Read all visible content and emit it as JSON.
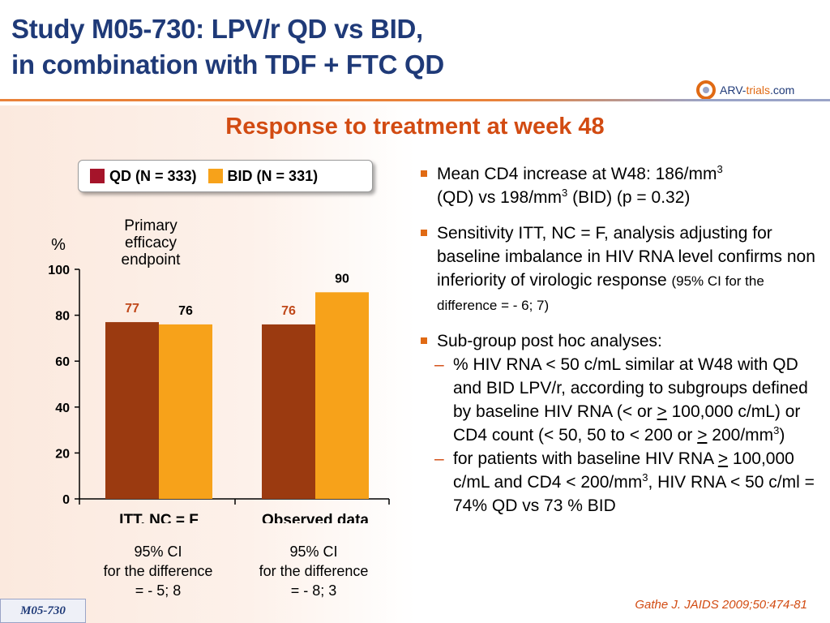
{
  "title_line1": "Study M05-730: LPV/r QD vs BID,",
  "title_line2": "in combination with TDF + FTC QD",
  "logo": {
    "part1": "ARV-",
    "part2": "trials",
    "part3": ".com"
  },
  "subtitle": "Response to treatment at week 48",
  "legend": [
    {
      "label": "QD (N = 333)",
      "color": "#a5142a"
    },
    {
      "label": "BID (N = 331)",
      "color": "#f7a21a"
    }
  ],
  "annotation": {
    "line1": "Primary",
    "line2": "efficacy",
    "line3": "endpoint"
  },
  "chart_data": {
    "type": "bar",
    "categories": [
      "ITT, NC = F",
      "Observed data"
    ],
    "series": [
      {
        "name": "QD (N = 333)",
        "values": [
          77,
          76
        ],
        "color": "#9b3a10",
        "label_color": "#c0481a"
      },
      {
        "name": "BID (N = 331)",
        "values": [
          76,
          90
        ],
        "color": "#f7a21a",
        "label_color": "#000000"
      }
    ],
    "ylabel": "%",
    "ylim": [
      0,
      100
    ],
    "yticks": [
      0,
      20,
      40,
      60,
      80,
      100
    ],
    "grid": false
  },
  "ci_notes": [
    {
      "line1": "95% CI",
      "line2": "for the difference",
      "line3": "= - 5; 8"
    },
    {
      "line1": "95% CI",
      "line2": "for the difference",
      "line3": "= - 8; 3"
    }
  ],
  "bullets": {
    "b1": {
      "t1": "Mean CD4 increase at W48: 186/mm",
      "sup1": "3",
      "t2": "(QD) vs 198/mm",
      "sup2": "3",
      "t3": " (BID) (p = 0.32)"
    },
    "b2": {
      "main": "Sensitivity ITT, NC = F, analysis adjusting for baseline imbalance in HIV RNA level confirms non inferiority of virologic response",
      "small": "(95% CI for the difference = - 6; 7)"
    },
    "b3": {
      "main": "Sub-group post hoc analyses:"
    },
    "sub1": {
      "dash": "–",
      "t1": "% HIV RNA < 50 c/mL similar at W48 with QD and BID LPV/r, according to subgroups defined by baseline HIV RNA (< or ",
      "u1": ">",
      "t2": " 100,000 c/mL) or CD4 count (< 50, 50 to < 200 or ",
      "u2": ">",
      "t3": " 200/mm",
      "sup": "3",
      "t4": ")"
    },
    "sub2": {
      "dash": "–",
      "t1": "for patients with baseline HIV RNA ",
      "u1": ">",
      "t2": " 100,000 c/mL and CD4 < 200/mm",
      "sup": "3",
      "t3": ", HIV RNA < 50 c/ml = 74% QD vs 73 % BID"
    }
  },
  "citation": "Gathe J. JAIDS 2009;50:474-81",
  "study_tag": "M05-730"
}
